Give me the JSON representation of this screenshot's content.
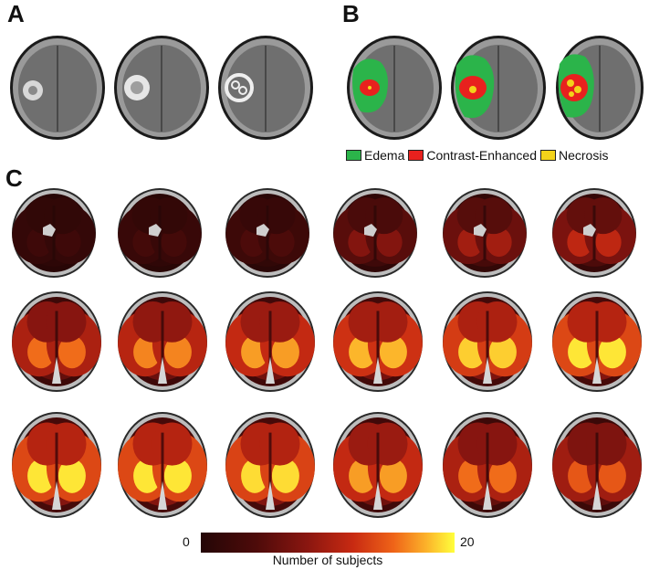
{
  "panels": {
    "a": "A",
    "b": "B",
    "c": "C"
  },
  "legend": [
    {
      "label": "Edema",
      "color": "#2bb44a"
    },
    {
      "label": "Contrast-Enhanced",
      "color": "#e8211e"
    },
    {
      "label": "Necrosis",
      "color": "#f3d31a"
    }
  ],
  "colorbar": {
    "min": "0",
    "max": "20",
    "title": "Number of subjects"
  },
  "mri_slices": [
    {
      "lesion": "small"
    },
    {
      "lesion": "medium"
    },
    {
      "lesion": "large"
    }
  ],
  "segmented_slices": [
    {
      "necrosis": 0.1
    },
    {
      "necrosis": 0.3
    },
    {
      "necrosis": 0.6
    }
  ],
  "heatmap_intensity": [
    [
      0.1,
      0.12,
      0.15,
      0.3,
      0.38,
      0.45
    ],
    [
      0.65,
      0.7,
      0.75,
      0.8,
      0.85,
      0.9
    ],
    [
      0.9,
      0.9,
      0.88,
      0.75,
      0.65,
      0.6
    ]
  ]
}
